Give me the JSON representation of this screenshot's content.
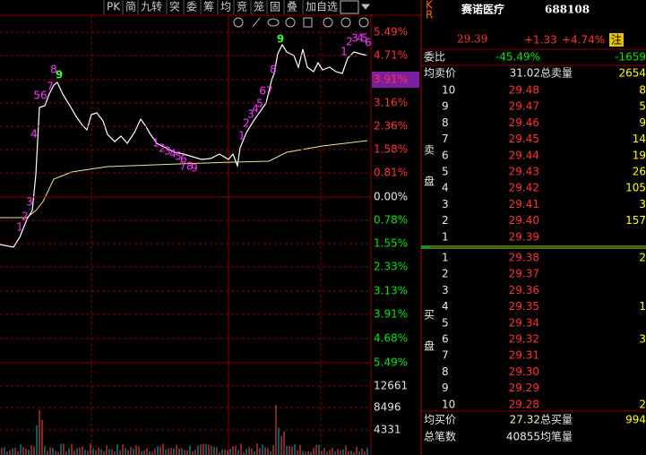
{
  "toolbar": [
    "PK",
    "简",
    "九转",
    "突",
    "委",
    "筹",
    "均",
    "竞",
    "笼",
    "固",
    "叠",
    "加自选"
  ],
  "axis_labels": [
    "5.49%",
    "4.71%",
    "3.91%",
    "3.16%",
    "2.36%",
    "1.58%",
    "0.81%",
    "0.00%",
    "0.78%",
    "1.55%",
    "2.33%",
    "3.13%",
    "3.91%",
    "4.68%",
    "5.49%"
  ],
  "volume_labels": [
    "12661",
    "8496",
    "4331"
  ],
  "markers": [
    "1",
    "2",
    "3",
    "4",
    "56",
    "7",
    "8",
    "9",
    "1",
    "2",
    "3",
    "4",
    "5",
    "6",
    "78",
    "9",
    "1",
    "2",
    "3",
    "4",
    "5",
    "67",
    "8",
    "9",
    "1",
    "2",
    "3",
    "4",
    "5",
    "6"
  ],
  "stock": {
    "badge": [
      "K",
      "R"
    ],
    "name": "赛诺医疗",
    "code": "688108",
    "price": "29.39",
    "change": "+1.33",
    "pct": "+4.74%",
    "tag": "注"
  },
  "ratio": {
    "label": "委比",
    "value": "-45.49%",
    "extra": "-1659"
  },
  "sell_summary": {
    "label": "均卖价",
    "value": "31.02",
    "label2": "总卖量",
    "extra": "2654"
  },
  "sell_side": [
    "卖",
    "盘"
  ],
  "sell": [
    [
      "10",
      "29.48",
      "8"
    ],
    [
      "9",
      "29.47",
      "5"
    ],
    [
      "8",
      "29.46",
      "9"
    ],
    [
      "7",
      "29.45",
      "14"
    ],
    [
      "6",
      "29.44",
      "19"
    ],
    [
      "5",
      "29.43",
      "26"
    ],
    [
      "4",
      "29.42",
      "105"
    ],
    [
      "3",
      "29.41",
      "3"
    ],
    [
      "2",
      "29.40",
      "157"
    ],
    [
      "1",
      "29.39"
    ]
  ],
  "buy_side": [
    "买",
    "盘"
  ],
  "buy": [
    [
      "1",
      "29.38",
      "2"
    ],
    [
      "2",
      "29.37"
    ],
    [
      "3",
      "29.36"
    ],
    [
      "4",
      "29.35",
      "1"
    ],
    [
      "5",
      "29.34"
    ],
    [
      "6",
      "29.32",
      "3"
    ],
    [
      "7",
      "29.31"
    ],
    [
      "8",
      "29.30"
    ],
    [
      "9",
      "29.29"
    ],
    [
      "10",
      "29.28",
      "2"
    ]
  ],
  "buy_summary": {
    "label": "均买价",
    "value": "27.32",
    "label2": "总买量",
    "extra": "994"
  },
  "count_summary": {
    "label": "总笔数",
    "value": "40855",
    "label2": "均笔量"
  }
}
